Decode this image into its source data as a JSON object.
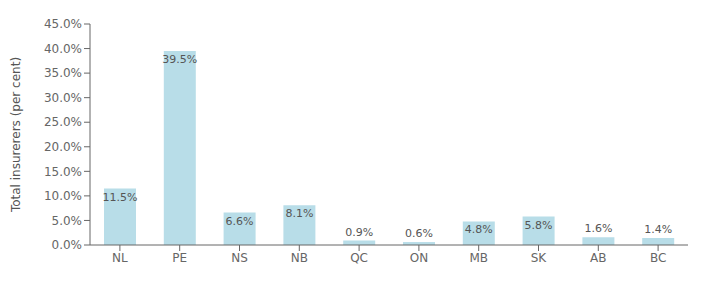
{
  "chart_data": {
    "type": "bar",
    "categories": [
      "NL",
      "PE",
      "NS",
      "NB",
      "QC",
      "ON",
      "MB",
      "SK",
      "AB",
      "BC"
    ],
    "values": [
      11.5,
      39.5,
      6.6,
      8.1,
      0.9,
      0.6,
      4.8,
      5.8,
      1.6,
      1.4
    ],
    "value_labels": [
      "11.5%",
      "39.5%",
      "6.6%",
      "8.1%",
      "0.9%",
      "0.6%",
      "4.8%",
      "5.8%",
      "1.6%",
      "1.4%"
    ],
    "color": "#b8dde8",
    "ylabel": "Total insurerers (per cent)",
    "ylim": [
      0,
      45
    ],
    "yticks": [
      {
        "value": 0,
        "label": "0.0%"
      },
      {
        "value": 5,
        "label": "5.0%"
      },
      {
        "value": 10,
        "label": "10.0%"
      },
      {
        "value": 15,
        "label": "15.0%"
      },
      {
        "value": 20,
        "label": "20.0%"
      },
      {
        "value": 25,
        "label": "25.0%"
      },
      {
        "value": 30,
        "label": "30.0%"
      },
      {
        "value": 35,
        "label": "35.0%"
      },
      {
        "value": 40,
        "label": "40.0%"
      },
      {
        "value": 45,
        "label": "45.0%"
      }
    ],
    "grid": false,
    "data_labels": true
  }
}
